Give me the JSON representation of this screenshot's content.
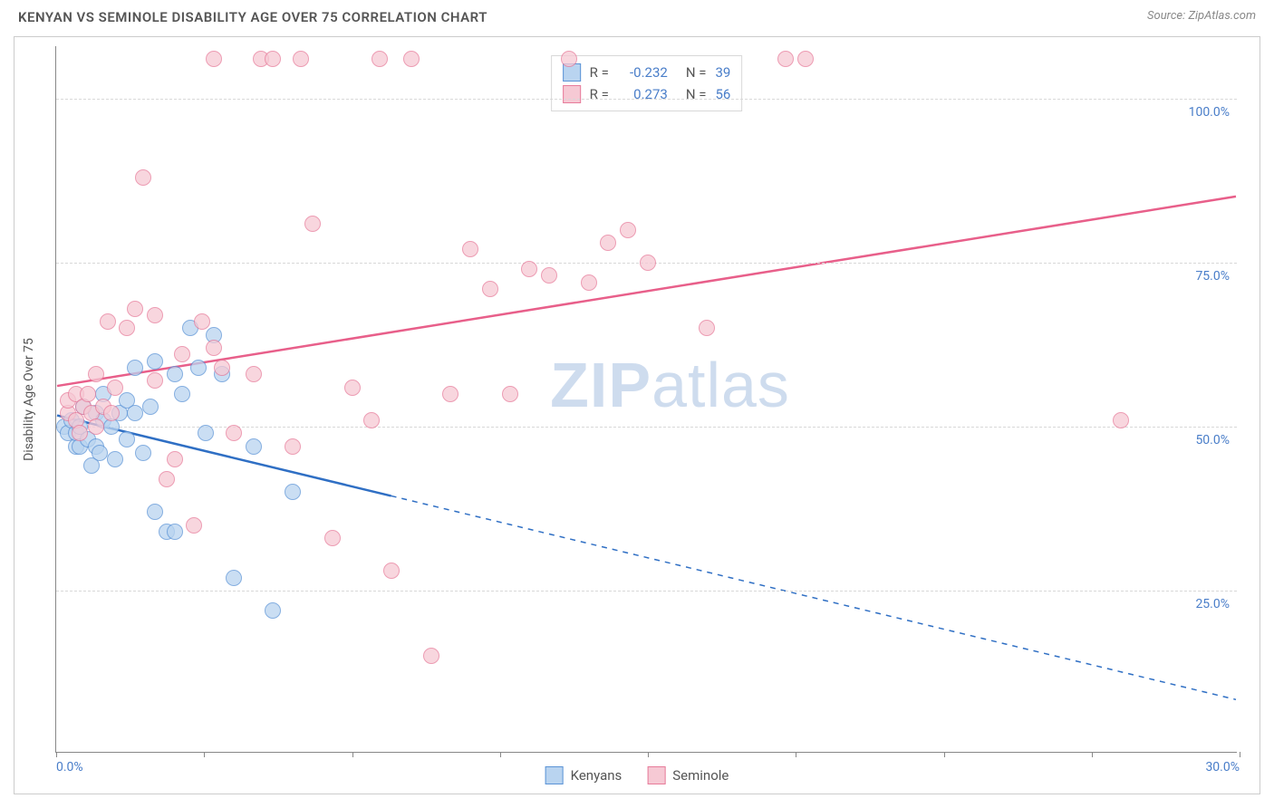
{
  "header": {
    "title": "KENYAN VS SEMINOLE DISABILITY AGE OVER 75 CORRELATION CHART",
    "source_label": "Source: ",
    "source_name": "ZipAtlas.com"
  },
  "chart": {
    "type": "scatter",
    "ylabel": "Disability Age Over 75",
    "watermark_left": "ZIP",
    "watermark_right": "atlas",
    "background_color": "#ffffff",
    "grid_color": "#d8d8d8",
    "axis_color": "#888888",
    "tick_label_color": "#4a7ec9",
    "axis_label_color": "#555555",
    "xlim": [
      0,
      30
    ],
    "ylim": [
      0,
      108
    ],
    "xticks": [
      0,
      3.75,
      7.5,
      11.25,
      15,
      18.75,
      22.5,
      26.25,
      30
    ],
    "xtick_labels": {
      "0": "0.0%",
      "30": "30.0%"
    },
    "yticks": [
      25,
      50,
      75,
      100
    ],
    "ytick_labels": {
      "25": "25.0%",
      "50": "50.0%",
      "75": "75.0%",
      "100": "100.0%"
    },
    "point_radius": 9,
    "series": [
      {
        "name": "Kenyans",
        "fill": "#b9d4f0",
        "stroke": "#5b93d6",
        "trend_color": "#2f6fc4",
        "trend_solid_until_x": 8.5,
        "trend": {
          "x1": 0,
          "y1": 51.5,
          "x2": 30,
          "y2": 8
        },
        "R": "-0.232",
        "N": "39",
        "points": [
          [
            0.2,
            50
          ],
          [
            0.3,
            49
          ],
          [
            0.4,
            51
          ],
          [
            0.5,
            47
          ],
          [
            0.5,
            49
          ],
          [
            0.6,
            50
          ],
          [
            0.6,
            47
          ],
          [
            0.7,
            53
          ],
          [
            0.8,
            48
          ],
          [
            0.9,
            44
          ],
          [
            1.0,
            47
          ],
          [
            1.0,
            52
          ],
          [
            1.1,
            46
          ],
          [
            1.2,
            51
          ],
          [
            1.2,
            55
          ],
          [
            1.4,
            50
          ],
          [
            1.5,
            45
          ],
          [
            1.6,
            52
          ],
          [
            1.8,
            48
          ],
          [
            1.8,
            54
          ],
          [
            2.0,
            52
          ],
          [
            2.0,
            59
          ],
          [
            2.2,
            46
          ],
          [
            2.4,
            53
          ],
          [
            2.5,
            37
          ],
          [
            2.5,
            60
          ],
          [
            2.8,
            34
          ],
          [
            3.0,
            34
          ],
          [
            3.0,
            58
          ],
          [
            3.2,
            55
          ],
          [
            3.4,
            65
          ],
          [
            3.6,
            59
          ],
          [
            3.8,
            49
          ],
          [
            4.0,
            64
          ],
          [
            4.2,
            58
          ],
          [
            4.5,
            27
          ],
          [
            5.0,
            47
          ],
          [
            5.5,
            22
          ],
          [
            6.0,
            40
          ]
        ]
      },
      {
        "name": "Seminole",
        "fill": "#f6c9d4",
        "stroke": "#e77b9a",
        "trend_color": "#e85f8a",
        "trend_solid_until_x": 30,
        "trend": {
          "x1": 0,
          "y1": 56,
          "x2": 30,
          "y2": 85
        },
        "R": "0.273",
        "N": "56",
        "points": [
          [
            0.3,
            52
          ],
          [
            0.3,
            54
          ],
          [
            0.5,
            51
          ],
          [
            0.5,
            55
          ],
          [
            0.6,
            49
          ],
          [
            0.7,
            53
          ],
          [
            0.8,
            55
          ],
          [
            0.9,
            52
          ],
          [
            1.0,
            50
          ],
          [
            1.0,
            58
          ],
          [
            1.2,
            53
          ],
          [
            1.3,
            66
          ],
          [
            1.4,
            52
          ],
          [
            1.5,
            56
          ],
          [
            1.8,
            65
          ],
          [
            2.0,
            68
          ],
          [
            2.2,
            88
          ],
          [
            2.5,
            57
          ],
          [
            2.5,
            67
          ],
          [
            2.8,
            42
          ],
          [
            3.0,
            45
          ],
          [
            3.2,
            61
          ],
          [
            3.5,
            35
          ],
          [
            3.7,
            66
          ],
          [
            4.0,
            62
          ],
          [
            4.0,
            106
          ],
          [
            4.2,
            59
          ],
          [
            4.5,
            49
          ],
          [
            5.0,
            58
          ],
          [
            5.2,
            106
          ],
          [
            5.5,
            106
          ],
          [
            6.0,
            47
          ],
          [
            6.2,
            106
          ],
          [
            6.5,
            81
          ],
          [
            7.0,
            33
          ],
          [
            7.5,
            56
          ],
          [
            8.0,
            51
          ],
          [
            8.2,
            106
          ],
          [
            8.5,
            28
          ],
          [
            9.0,
            106
          ],
          [
            9.5,
            15
          ],
          [
            10.0,
            55
          ],
          [
            10.5,
            77
          ],
          [
            11.0,
            71
          ],
          [
            11.5,
            55
          ],
          [
            12.0,
            74
          ],
          [
            12.5,
            73
          ],
          [
            13.0,
            106
          ],
          [
            13.5,
            72
          ],
          [
            14.0,
            78
          ],
          [
            14.5,
            80
          ],
          [
            15.0,
            75
          ],
          [
            16.5,
            65
          ],
          [
            18.5,
            106
          ],
          [
            19.0,
            106
          ],
          [
            27.0,
            51
          ]
        ]
      }
    ],
    "legend_top_labels": {
      "R": "R =",
      "N": "N ="
    },
    "legend_bottom": [
      {
        "label": "Kenyans",
        "fill": "#b9d4f0",
        "stroke": "#5b93d6"
      },
      {
        "label": "Seminole",
        "fill": "#f6c9d4",
        "stroke": "#e77b9a"
      }
    ]
  }
}
